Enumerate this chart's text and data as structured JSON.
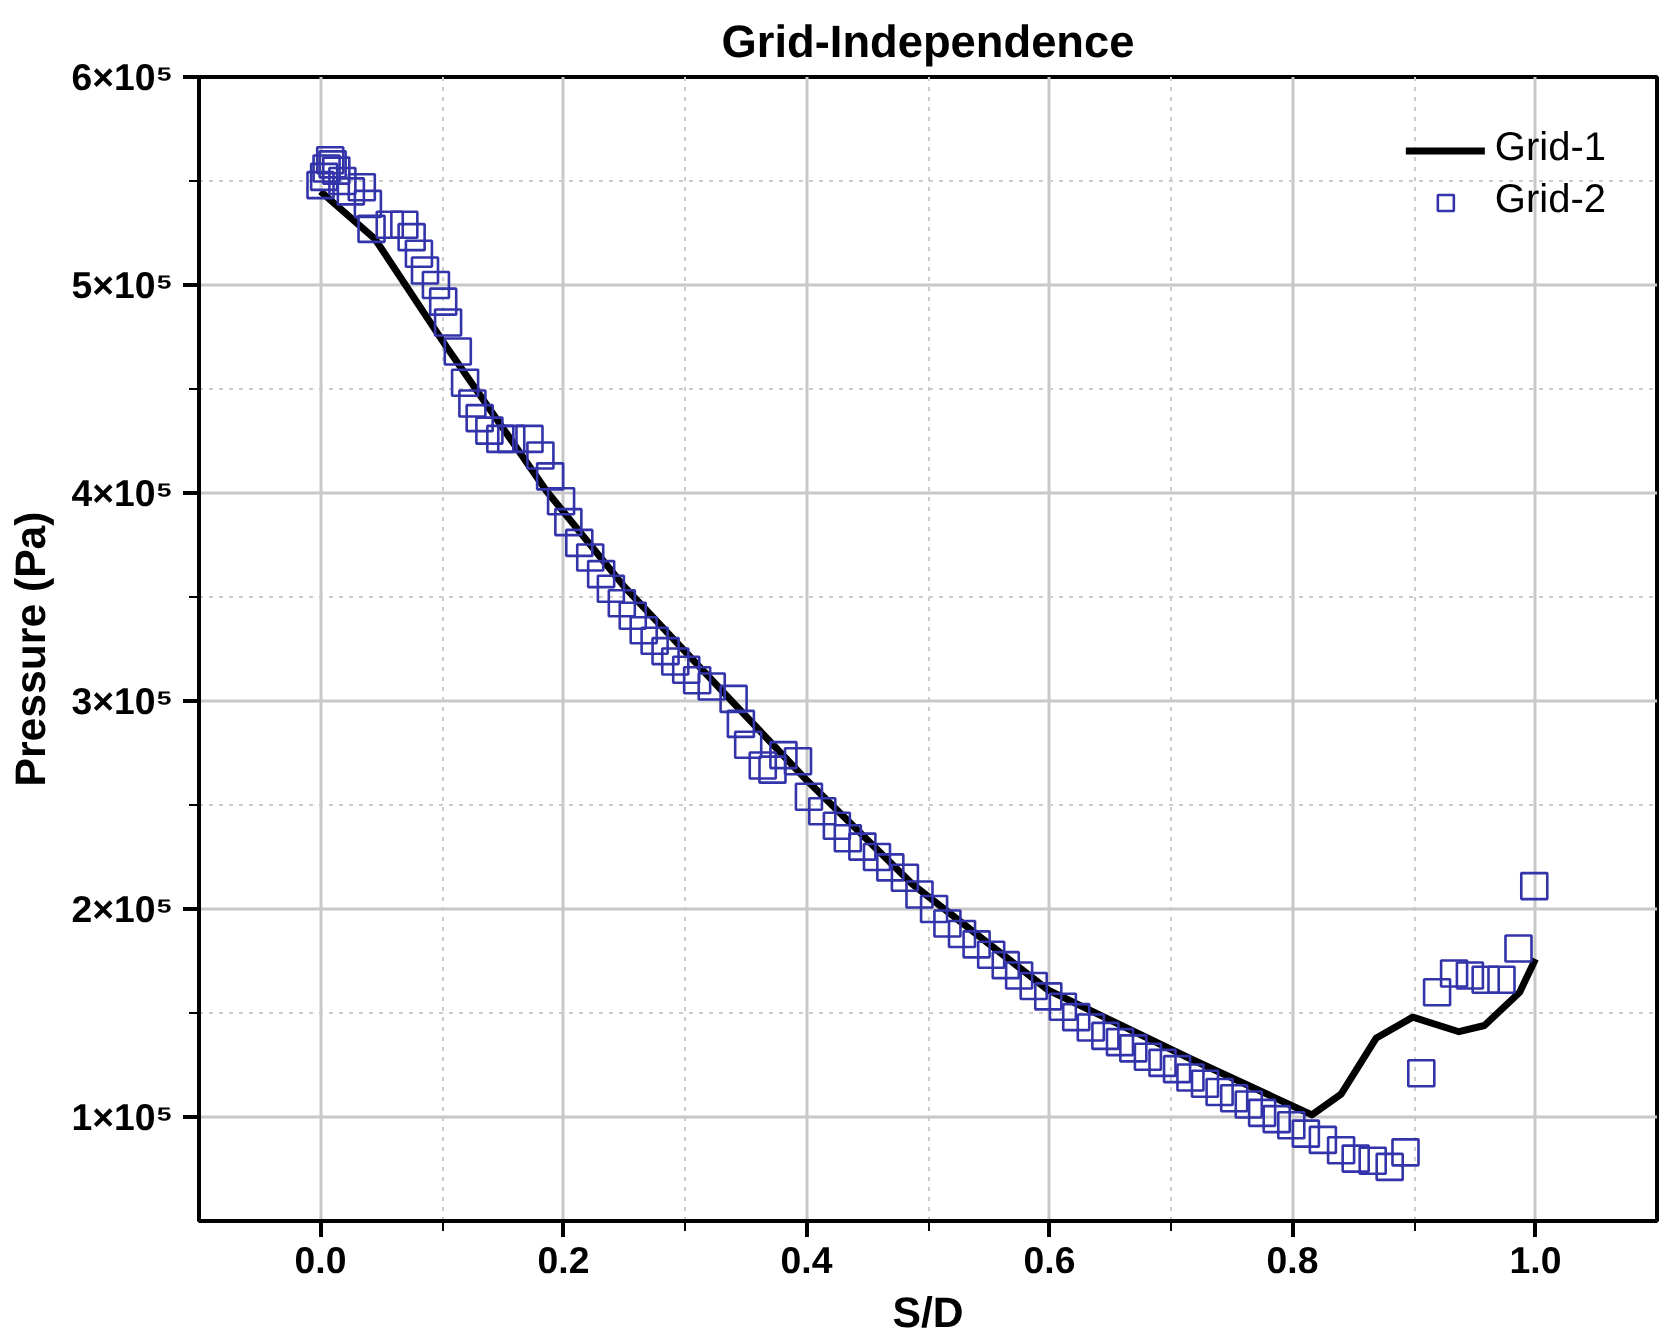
{
  "chart_data": {
    "type": "line",
    "title": "Grid-Independence",
    "xlabel": "S/D",
    "ylabel": "Pressure (Pa)",
    "xlim": [
      -0.1,
      1.1
    ],
    "ylim": [
      50000,
      600000
    ],
    "xticks": [
      {
        "value": 0,
        "label": "0.0"
      },
      {
        "value": 0.1,
        "label": null
      },
      0.2,
      {
        "value": 0.3,
        "label": null
      },
      0.4,
      {
        "value": 0.5,
        "label": null
      },
      0.6,
      {
        "value": 0.7,
        "label": null
      },
      0.8,
      {
        "value": 0.9,
        "label": null
      },
      {
        "value": 1,
        "label": "1.0"
      }
    ],
    "yticks": [
      {
        "value": 100000,
        "label": "1×10⁵"
      },
      {
        "value": 150000,
        "label": null
      },
      {
        "value": 200000,
        "label": "2×10⁵"
      },
      {
        "value": 250000,
        "label": null
      },
      {
        "value": 300000,
        "label": "3×10⁵"
      },
      {
        "value": 350000,
        "label": null
      },
      {
        "value": 400000,
        "label": "4×10⁵"
      },
      {
        "value": 450000,
        "label": null
      },
      {
        "value": 500000,
        "label": "5×10⁵"
      },
      {
        "value": 550000,
        "label": null
      },
      {
        "value": 600000,
        "label": "6×10⁵"
      }
    ],
    "grid": true,
    "legend": "top right",
    "series": [
      {
        "name": "Grid-1",
        "line_style": "solid",
        "color": "#000000",
        "x": [
          0,
          0.045,
          0.104,
          0.186,
          0.25,
          0.34,
          0.4,
          0.487,
          0.599,
          0.716,
          0.816,
          0.84,
          0.869,
          0.899,
          0.937,
          0.958,
          0.987,
          1.0
        ],
        "values": [
          545000,
          522000,
          470000,
          401000,
          355000,
          299000,
          262000,
          212000,
          161000,
          128000,
          101000,
          111000,
          138000,
          148000,
          141000,
          144000,
          160000,
          176000
        ]
      },
      {
        "name": "Grid-2",
        "type": "scatter",
        "marker": "square",
        "color": "#3333aa",
        "x": [
          0,
          0.003,
          0.005,
          0.008,
          0.01,
          0.013,
          0.018,
          0.025,
          0.034,
          0.039,
          0.042,
          0.057,
          0.069,
          0.075,
          0.081,
          0.086,
          0.095,
          0.101,
          0.105,
          0.113,
          0.119,
          0.125,
          0.131,
          0.139,
          0.148,
          0.157,
          0.172,
          0.181,
          0.189,
          0.198,
          0.204,
          0.213,
          0.222,
          0.231,
          0.239,
          0.248,
          0.257,
          0.266,
          0.275,
          0.284,
          0.292,
          0.301,
          0.31,
          0.322,
          0.34,
          0.346,
          0.352,
          0.364,
          0.372,
          0.381,
          0.393,
          0.402,
          0.413,
          0.425,
          0.434,
          0.446,
          0.458,
          0.469,
          0.481,
          0.493,
          0.505,
          0.516,
          0.528,
          0.54,
          0.552,
          0.564,
          0.575,
          0.587,
          0.599,
          0.611,
          0.622,
          0.634,
          0.646,
          0.658,
          0.669,
          0.681,
          0.693,
          0.705,
          0.716,
          0.728,
          0.74,
          0.752,
          0.764,
          0.775,
          0.787,
          0.799,
          0.811,
          0.825,
          0.84,
          0.852,
          0.866,
          0.88,
          0.893,
          0.906,
          0.919,
          0.933,
          0.946,
          0.959,
          0.972,
          0.986,
          0.999
        ],
        "values": [
          548000,
          552000,
          556000,
          560000,
          558000,
          555000,
          550000,
          545000,
          547000,
          539000,
          527000,
          529000,
          529000,
          523000,
          515000,
          507000,
          500000,
          492000,
          482000,
          468000,
          453000,
          443000,
          436000,
          430000,
          426000,
          426000,
          426000,
          418000,
          408000,
          396000,
          386000,
          376000,
          369000,
          361000,
          354000,
          347000,
          341000,
          334000,
          329000,
          324000,
          319000,
          315000,
          310000,
          307000,
          301000,
          289000,
          279000,
          269000,
          267000,
          274000,
          271000,
          254000,
          247000,
          240000,
          234000,
          230000,
          225000,
          220000,
          215000,
          207000,
          200000,
          193000,
          188000,
          183000,
          178000,
          173000,
          168000,
          163000,
          158000,
          153000,
          148000,
          143000,
          139000,
          136000,
          133000,
          129000,
          126000,
          123000,
          119000,
          116000,
          112000,
          109000,
          106000,
          102000,
          99000,
          96000,
          92000,
          89000,
          84000,
          80000,
          79000,
          76000,
          83000,
          121000,
          160000,
          169000,
          168000,
          166000,
          166000,
          181000,
          211000
        ]
      }
    ]
  }
}
